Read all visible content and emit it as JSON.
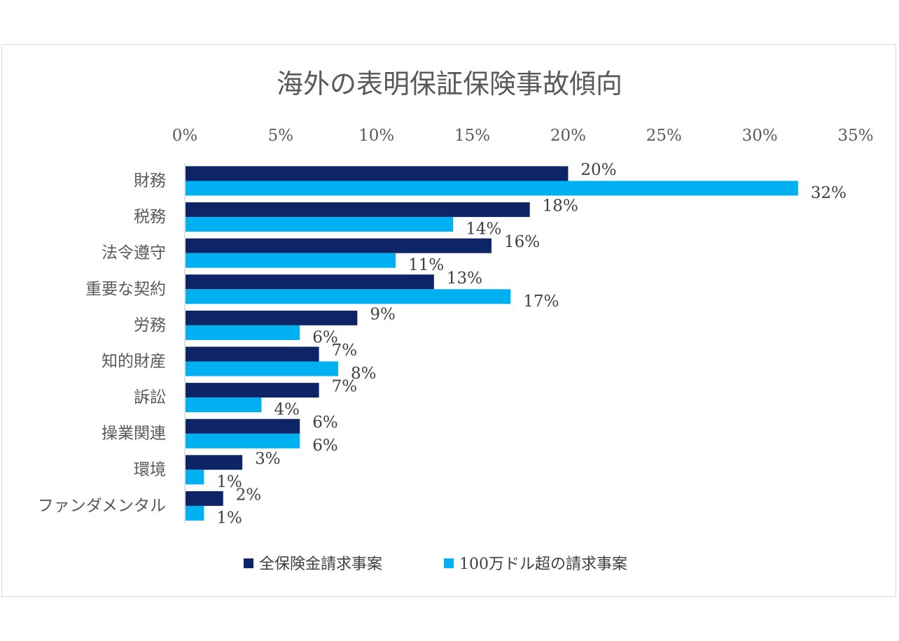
{
  "chart_data": {
    "type": "bar",
    "orientation": "horizontal",
    "title": "海外の表明保証保険事故傾向",
    "categories": [
      "財務",
      "税務",
      "法令遵守",
      "重要な契約",
      "労務",
      "知的財産",
      "訴訟",
      "操業関連",
      "環境",
      "ファンダメンタル"
    ],
    "series": [
      {
        "name": "全保険金請求事案",
        "color": "#0d2466",
        "values": [
          20,
          18,
          16,
          13,
          9,
          7,
          7,
          6,
          3,
          2
        ],
        "labels": [
          "20%",
          "18%",
          "16%",
          "13%",
          "9%",
          "7%",
          "7%",
          "6%",
          "3%",
          "2%"
        ]
      },
      {
        "name": "100万ドル超の請求事案",
        "color": "#00b0f0",
        "values": [
          32,
          14,
          11,
          17,
          6,
          8,
          4,
          6,
          1,
          1
        ],
        "labels": [
          "32%",
          "14%",
          "11%",
          "17%",
          "6%",
          "8%",
          "4%",
          "6%",
          "1%",
          "1%"
        ]
      }
    ],
    "x_axis": {
      "position": "top",
      "min": 0,
      "max": 35,
      "ticks": [
        0,
        5,
        10,
        15,
        20,
        25,
        30,
        35
      ],
      "tick_labels": [
        "0%",
        "5%",
        "10%",
        "15%",
        "20%",
        "25%",
        "30%",
        "35%"
      ]
    },
    "grid": false,
    "legend": "bottom"
  }
}
